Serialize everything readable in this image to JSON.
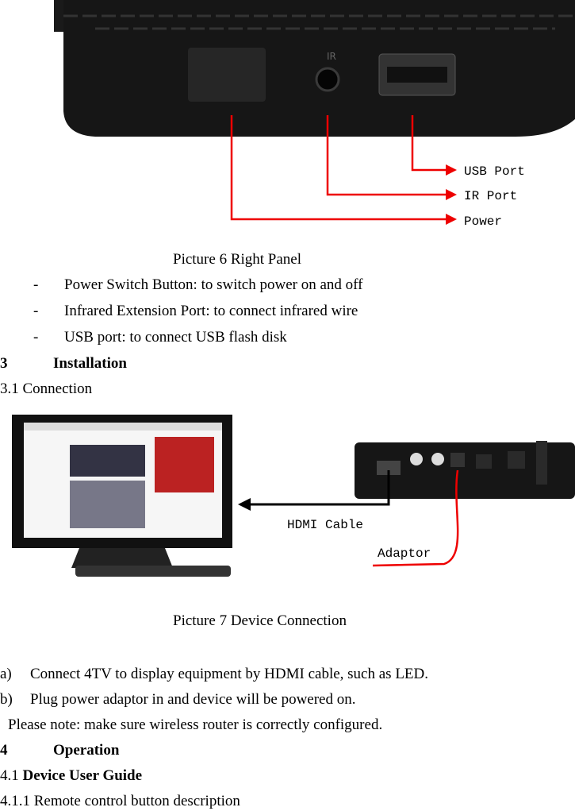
{
  "figure_1": {
    "device_label": "IR",
    "callouts": [
      "USB Port",
      "IR Port",
      "Power"
    ],
    "caption": "Picture 6 Right Panel"
  },
  "bullets": [
    {
      "marker": "-",
      "text": "Power Switch Button: to switch power on and off"
    },
    {
      "marker": "-",
      "text": "Infrared Extension Port: to connect infrared wire"
    },
    {
      "marker": "-",
      "text": "USB port: to connect USB flash disk"
    }
  ],
  "section_3": {
    "number": "3",
    "title": "Installation",
    "subsection": "3.1 Connection"
  },
  "figure_2": {
    "callouts": [
      "HDMI Cable",
      "Adaptor"
    ],
    "caption": "Picture 7 Device Connection"
  },
  "steps": [
    {
      "marker": "a)",
      "text": "Connect 4TV to display equipment by HDMI cable, such as LED."
    },
    {
      "marker": "b)",
      "text": "Plug power adaptor in and device will be powered on."
    }
  ],
  "note": "Please note: make sure wireless router is correctly configured.",
  "section_4": {
    "number": "4",
    "title": "Operation",
    "sub_number": "4.1",
    "sub_title": "Device User Guide",
    "subsub": "4.1.1 Remote control button description"
  }
}
